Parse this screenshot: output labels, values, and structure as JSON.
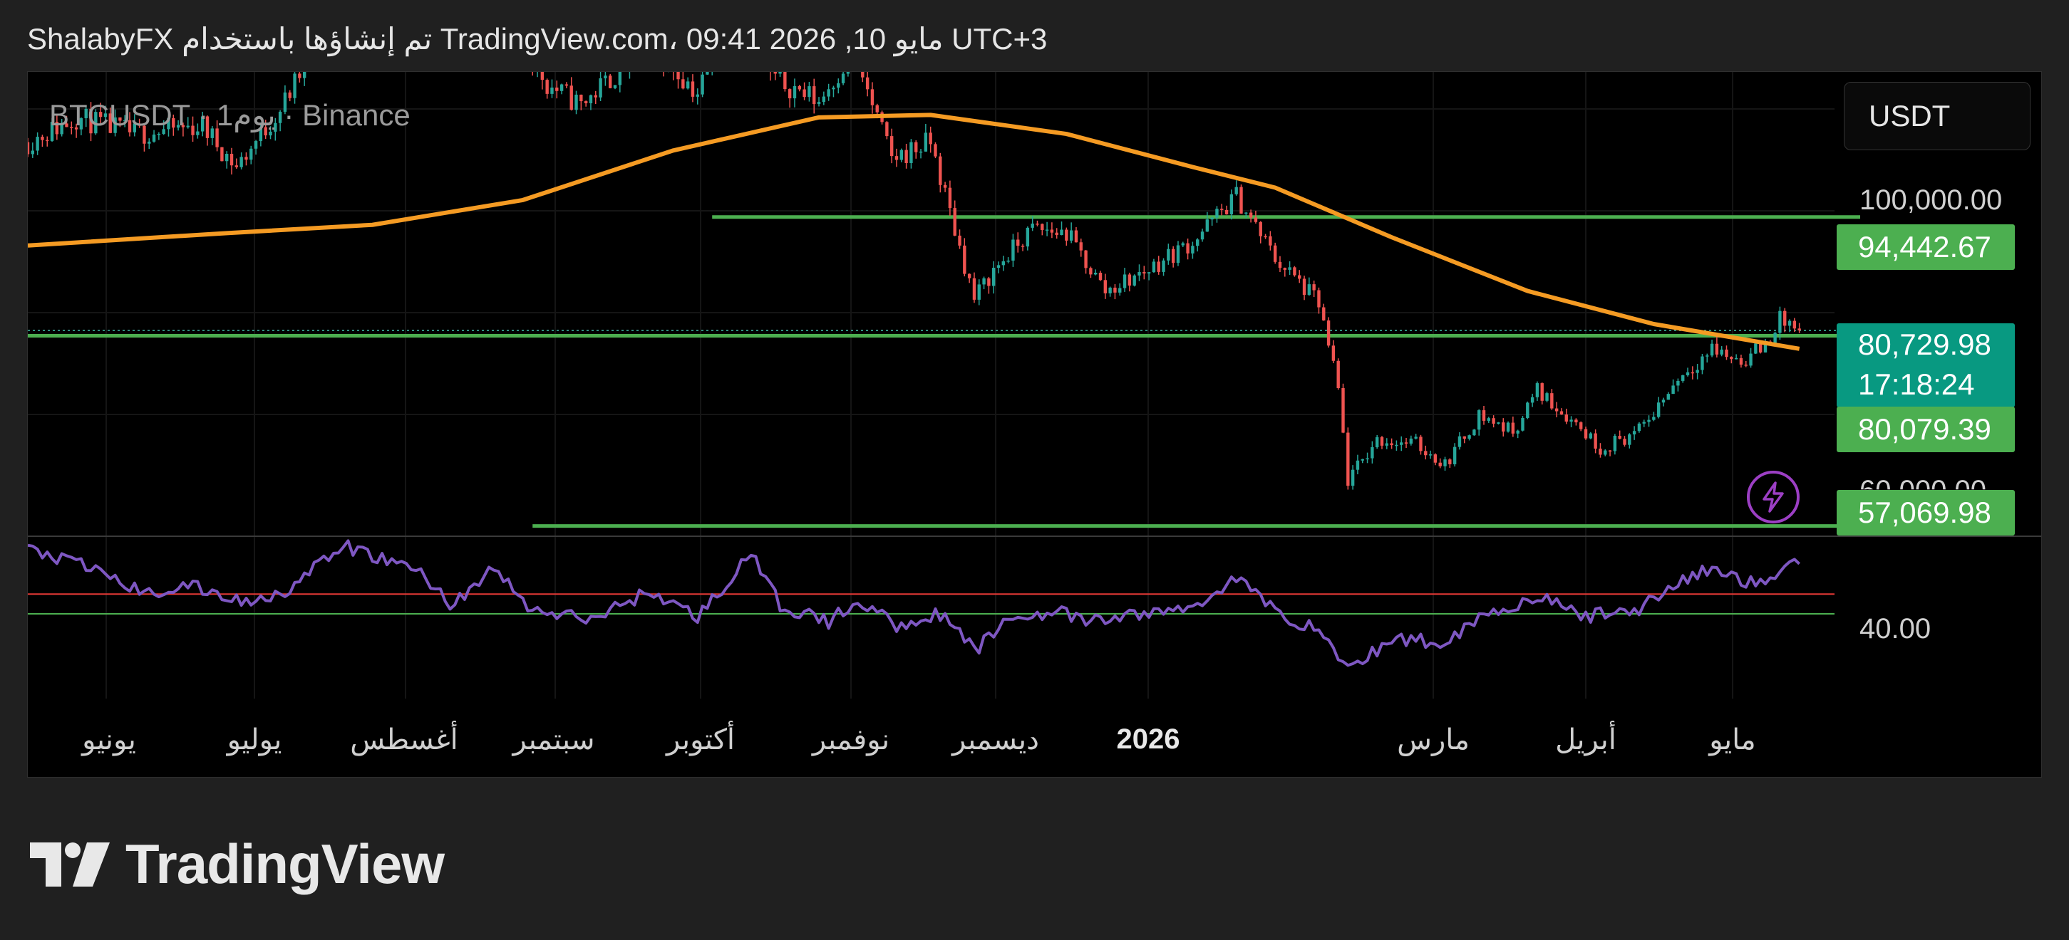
{
  "header": {
    "text": "ShalabyFX تم إنشاؤها باستخدام TradingView.com، 09:41 2026 ,10 مايو UTC+3"
  },
  "symbol": {
    "label": "BTCUSDT · 1يوم · Binance"
  },
  "currency": {
    "label": "USDT"
  },
  "price_axis": {
    "ticks": [
      "100,000.00",
      "60,000.00"
    ],
    "indicator_tick": "40.00"
  },
  "price_tags": {
    "resistance": "94,442.67",
    "current_price": "80,729.98",
    "countdown": "17:18:24",
    "support_mid": "80,079.39",
    "support_low": "57,069.98"
  },
  "time_axis": {
    "labels": [
      "يونيو",
      "يوليو",
      "أغسطس",
      "سبتمبر",
      "أكتوبر",
      "نوفمبر",
      "ديسمبر",
      "2026",
      "مارس",
      "أبريل",
      "مايو"
    ]
  },
  "brand": {
    "name": "TradingView"
  },
  "colors": {
    "background": "#000000",
    "frame": "#202020",
    "candle_up": "#26a69a",
    "candle_down": "#ef5350",
    "moving_average": "#f59b23",
    "horizontal_levels": "#4caf50",
    "current_price_tag": "#089981",
    "rsi_line": "#7e57c2",
    "rsi_upper_band": "#e53935",
    "rsi_lower_band": "#4caf50",
    "flash_button": "#9c3fc4"
  },
  "chart_data": {
    "type": "candlestick",
    "symbol": "BTCUSDT",
    "interval": "1D",
    "exchange": "Binance",
    "price_range_visible": [
      56000,
      112000
    ],
    "price_path": [
      [
        "2025-05-10",
        103500
      ],
      [
        "2025-05-20",
        106500
      ],
      [
        "2025-06-01",
        104500
      ],
      [
        "2025-06-15",
        105500
      ],
      [
        "2025-06-22",
        100500
      ],
      [
        "2025-07-01",
        107500
      ],
      [
        "2025-07-14",
        120500
      ],
      [
        "2025-07-25",
        117500
      ],
      [
        "2025-08-01",
        113500
      ],
      [
        "2025-08-14",
        122000
      ],
      [
        "2025-08-25",
        110500
      ],
      [
        "2025-09-01",
        108000
      ],
      [
        "2025-09-15",
        115500
      ],
      [
        "2025-09-25",
        109500
      ],
      [
        "2025-10-06",
        124500
      ],
      [
        "2025-10-10",
        111500
      ],
      [
        "2025-10-20",
        108500
      ],
      [
        "2025-10-27",
        114500
      ],
      [
        "2025-11-04",
        101500
      ],
      [
        "2025-11-12",
        103500
      ],
      [
        "2025-11-21",
        84500
      ],
      [
        "2025-11-25",
        88000
      ],
      [
        "2025-12-03",
        93000
      ],
      [
        "2025-12-10",
        92500
      ],
      [
        "2025-12-18",
        85500
      ],
      [
        "2025-12-25",
        87500
      ],
      [
        "2026-01-05",
        91500
      ],
      [
        "2026-01-14",
        97000
      ],
      [
        "2026-01-22",
        89500
      ],
      [
        "2026-01-31",
        84000
      ],
      [
        "2026-02-04",
        73500
      ],
      [
        "2026-02-06",
        62500
      ],
      [
        "2026-02-12",
        67500
      ],
      [
        "2026-02-20",
        67000
      ],
      [
        "2026-02-26",
        64500
      ],
      [
        "2026-03-05",
        70500
      ],
      [
        "2026-03-12",
        68500
      ],
      [
        "2026-03-17",
        73500
      ],
      [
        "2026-03-25",
        69500
      ],
      [
        "2026-03-30",
        66500
      ],
      [
        "2026-04-07",
        68500
      ],
      [
        "2026-04-15",
        75000
      ],
      [
        "2026-04-22",
        78500
      ],
      [
        "2026-04-28",
        77000
      ],
      [
        "2026-05-03",
        79000
      ],
      [
        "2026-05-06",
        82000
      ],
      [
        "2026-05-10",
        80730
      ]
    ],
    "moving_average": [
      [
        "2025-05-10",
        91000
      ],
      [
        "2025-06-20",
        92500
      ],
      [
        "2025-07-20",
        93500
      ],
      [
        "2025-08-20",
        96500
      ],
      [
        "2025-09-20",
        102500
      ],
      [
        "2025-10-20",
        106500
      ],
      [
        "2025-11-12",
        106800
      ],
      [
        "2025-12-10",
        104500
      ],
      [
        "2026-01-05",
        100500
      ],
      [
        "2026-01-22",
        98000
      ],
      [
        "2026-02-15",
        92000
      ],
      [
        "2026-03-15",
        85500
      ],
      [
        "2026-04-10",
        81500
      ],
      [
        "2026-05-10",
        78500
      ]
    ],
    "horizontal_levels": [
      {
        "price": 94442.67,
        "start": "2025-09-28"
      },
      {
        "price": 80079.39,
        "start": "2025-05-10"
      },
      {
        "price": 57069.98,
        "start": "2025-08-22"
      }
    ],
    "current_price": 80729.98,
    "rsi": {
      "range_visible": [
        22,
        74
      ],
      "upper_band": 54,
      "lower_band": 47,
      "tick": 40,
      "path": [
        [
          "2025-05-10",
          70
        ],
        [
          "2025-05-25",
          62
        ],
        [
          "2025-06-03",
          54
        ],
        [
          "2025-06-12",
          57
        ],
        [
          "2025-06-24",
          51
        ],
        [
          "2025-07-03",
          56
        ],
        [
          "2025-07-14",
          71
        ],
        [
          "2025-07-30",
          62
        ],
        [
          "2025-08-05",
          50
        ],
        [
          "2025-08-14",
          63
        ],
        [
          "2025-08-22",
          48
        ],
        [
          "2025-09-03",
          45
        ],
        [
          "2025-09-15",
          55
        ],
        [
          "2025-09-25",
          46
        ],
        [
          "2025-10-06",
          68
        ],
        [
          "2025-10-12",
          50
        ],
        [
          "2025-10-22",
          44
        ],
        [
          "2025-10-28",
          52
        ],
        [
          "2025-11-05",
          43
        ],
        [
          "2025-11-14",
          47
        ],
        [
          "2025-11-21",
          34
        ],
        [
          "2025-11-28",
          45
        ],
        [
          "2025-12-07",
          48
        ],
        [
          "2025-12-15",
          44
        ],
        [
          "2025-12-25",
          47
        ],
        [
          "2026-01-05",
          49
        ],
        [
          "2026-01-14",
          60
        ],
        [
          "2026-01-22",
          48
        ],
        [
          "2026-02-01",
          40
        ],
        [
          "2026-02-06",
          27
        ],
        [
          "2026-02-15",
          38
        ],
        [
          "2026-02-26",
          37
        ],
        [
          "2026-03-05",
          46
        ],
        [
          "2026-03-17",
          53
        ],
        [
          "2026-03-27",
          46
        ],
        [
          "2026-04-07",
          49
        ],
        [
          "2026-04-15",
          58
        ],
        [
          "2026-04-22",
          63
        ],
        [
          "2026-05-02",
          57
        ],
        [
          "2026-05-07",
          65
        ],
        [
          "2026-05-10",
          64
        ]
      ]
    },
    "x_axis_labels": [
      "يونيو",
      "يوليو",
      "أغسطس",
      "سبتمبر",
      "أكتوبر",
      "نوفمبر",
      "ديسمبر",
      "2026",
      "مارس",
      "أبريل",
      "مايو"
    ]
  }
}
